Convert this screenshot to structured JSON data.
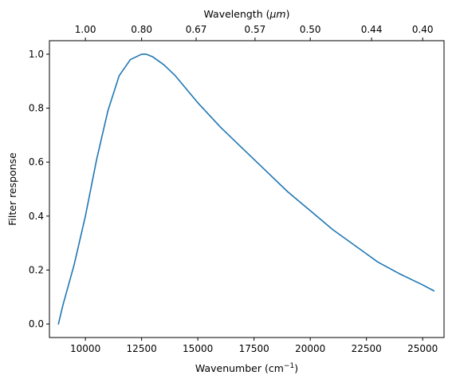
{
  "chart_data": {
    "type": "line",
    "xlabel": "Wavenumber (cm",
    "xlabel_sup": "−1",
    "xlabel_close": ")",
    "ylabel": "Filter response",
    "top_xlabel": "Wavelength (",
    "top_xlabel_unit": "μm",
    "top_xlabel_close": ")",
    "xlim": [
      8400,
      25950
    ],
    "ylim": [
      -0.05,
      1.05
    ],
    "xticks": [
      10000,
      12500,
      15000,
      17500,
      20000,
      22500,
      25000
    ],
    "xtick_labels": [
      "10000",
      "12500",
      "15000",
      "17500",
      "20000",
      "22500",
      "25000"
    ],
    "yticks": [
      0.0,
      0.2,
      0.4,
      0.6,
      0.8,
      1.0
    ],
    "ytick_labels": [
      "0.0",
      "0.2",
      "0.4",
      "0.6",
      "0.8",
      "1.0"
    ],
    "top_ticks_wavelength_um": [
      1.0,
      0.8,
      0.67,
      0.57,
      0.5,
      0.44,
      0.4
    ],
    "top_tick_labels": [
      "1.00",
      "0.80",
      "0.67",
      "0.57",
      "0.50",
      "0.44",
      "0.40"
    ],
    "grid": false,
    "line_color": "#1f77b4",
    "series": [
      {
        "x": [
          8800,
          9000,
          9500,
          10000,
          10500,
          11000,
          11500,
          12000,
          12500,
          12700,
          13000,
          13500,
          14000,
          15000,
          16000,
          17000,
          17500,
          18000,
          19000,
          20000,
          21000,
          22000,
          22500,
          23000,
          24000,
          25000,
          25500
        ],
        "y": [
          0.0,
          0.07,
          0.22,
          0.4,
          0.61,
          0.79,
          0.92,
          0.98,
          1.0,
          1.0,
          0.99,
          0.96,
          0.92,
          0.82,
          0.73,
          0.65,
          0.61,
          0.57,
          0.49,
          0.42,
          0.35,
          0.29,
          0.26,
          0.23,
          0.185,
          0.145,
          0.123
        ]
      }
    ]
  }
}
